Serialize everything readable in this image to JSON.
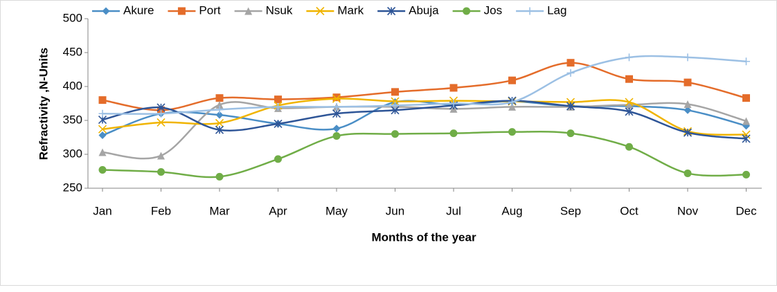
{
  "chart_data": {
    "type": "line",
    "smooth": true,
    "x_label": "Months of the year",
    "y_label": "Refractivity ,N-Units",
    "categories": [
      "Jan",
      "Feb",
      "Mar",
      "Apr",
      "May",
      "Jun",
      "Jul",
      "Aug",
      "Sep",
      "Oct",
      "Nov",
      "Dec"
    ],
    "ylim": [
      250,
      500
    ],
    "yticks": [
      250,
      300,
      350,
      400,
      450,
      500
    ],
    "grid": false,
    "legend": "top",
    "series": [
      {
        "name": "Akure",
        "color": "#4a8ec6",
        "marker": "diamond",
        "values": [
          328,
          360,
          358,
          345,
          338,
          377,
          373,
          378,
          371,
          371,
          365,
          342
        ]
      },
      {
        "name": "Port",
        "color": "#e46c2a",
        "marker": "square",
        "values": [
          380,
          365,
          383,
          381,
          384,
          392,
          398,
          409,
          435,
          411,
          406,
          383
        ]
      },
      {
        "name": "Nsuk",
        "color": "#a5a5a5",
        "marker": "triangle",
        "values": [
          303,
          298,
          373,
          368,
          370,
          370,
          367,
          370,
          370,
          373,
          374,
          349
        ]
      },
      {
        "name": "Mark",
        "color": "#f0b400",
        "marker": "x",
        "values": [
          337,
          347,
          346,
          372,
          382,
          378,
          379,
          378,
          377,
          377,
          334,
          329
        ]
      },
      {
        "name": "Abuja",
        "color": "#2e5597",
        "marker": "star",
        "values": [
          351,
          369,
          336,
          345,
          360,
          365,
          372,
          379,
          371,
          363,
          332,
          323
        ]
      },
      {
        "name": "Jos",
        "color": "#70ad47",
        "marker": "circle",
        "values": [
          277,
          274,
          267,
          293,
          327,
          330,
          331,
          333,
          331,
          311,
          272,
          270
        ]
      },
      {
        "name": "Lag",
        "color": "#9cc0e4",
        "marker": "plus",
        "values": [
          360,
          360,
          366,
          370,
          370,
          372,
          375,
          377,
          420,
          443,
          443,
          437
        ]
      }
    ]
  }
}
